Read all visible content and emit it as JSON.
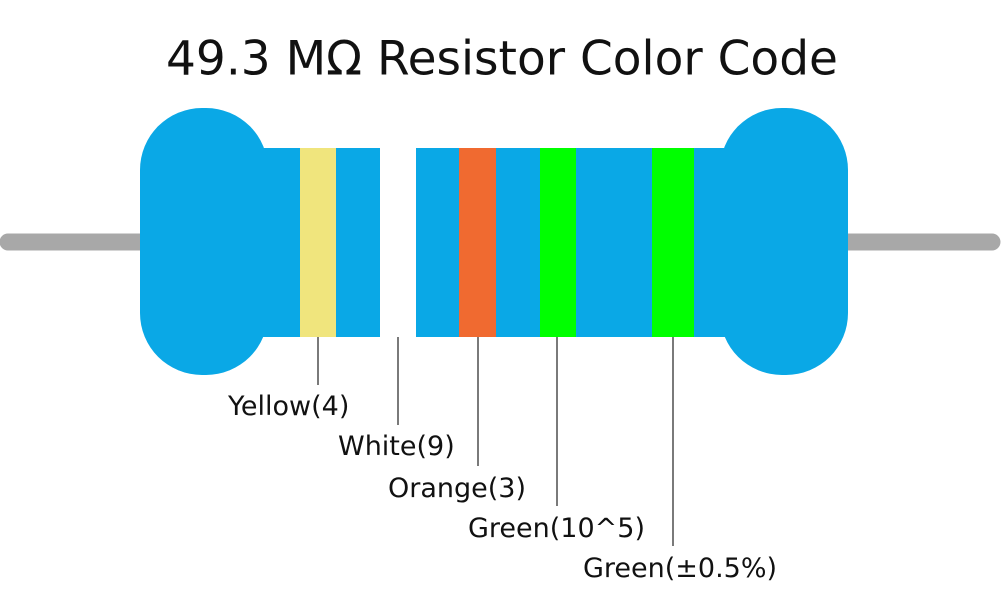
{
  "title": "49.3 MΩ Resistor Color Code",
  "bands": [
    "Yellow(4)",
    "White(9)",
    "Orange(3)",
    "Green(10^5)",
    "Green(±0.5%)"
  ]
}
